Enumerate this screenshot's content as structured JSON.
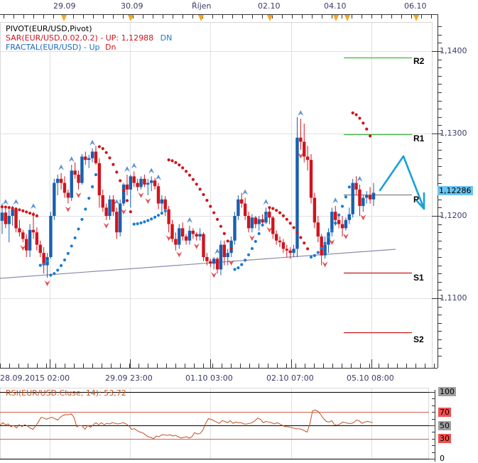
{
  "chart_data": {
    "type": "candlestick",
    "symbol": "EUR/USD",
    "top_axis": {
      "date_labels": [
        "29.09",
        "30.09",
        "Říjen",
        "02.10",
        "04.10",
        "06.10"
      ],
      "marker_color": "#f5a623"
    },
    "bottom_axis": {
      "labels": [
        "28.09.2015 02:00",
        "29.09 23:00",
        "01.10 03:00",
        "02.10 07:00",
        "05.10 08:00"
      ]
    },
    "price_axis": {
      "ticks": [
        "1,1400",
        "1,1300",
        "1,1200",
        "1,1100"
      ],
      "tick_values": [
        1.14,
        1.13,
        1.12,
        1.11
      ],
      "current_price": "1,12286",
      "current_price_value": 1.12286
    },
    "legend": [
      {
        "text": "PIVOT(EUR/USD,Pivot)",
        "color": "#000000"
      },
      {
        "text": "SAR(EUR/USD,0.02,0.2) -  UP: 1,12988",
        "suffix": "DN",
        "color": "#d0141c",
        "suffix_color": "#1a7bd0"
      },
      {
        "text": "FRACTAL(EUR/USD) -  Up",
        "suffix": "Dn",
        "color": "#1a6ab8",
        "suffix_color": "#d0141c"
      }
    ],
    "pivot_levels": [
      {
        "name": "R2",
        "value": 1.1392,
        "color": "#3cb83c"
      },
      {
        "name": "R1",
        "value": 1.1299,
        "color": "#3cb83c"
      },
      {
        "name": "P",
        "value": 1.1226,
        "color": "#808080"
      },
      {
        "name": "S1",
        "value": 1.1131,
        "color": "#c01818"
      },
      {
        "name": "S2",
        "value": 1.1059,
        "color": "#c01818"
      }
    ],
    "trendline": {
      "from": [
        0,
        1.1125
      ],
      "to": [
        557,
        1.116
      ],
      "color": "#8a8ab0"
    },
    "forecast_arrow": {
      "color": "#1aa0d8",
      "points": [
        [
          535,
          1.1233
        ],
        [
          568,
          1.1272
        ],
        [
          597,
          1.1207
        ]
      ]
    },
    "rsi": {
      "title": "RSI(EUR/USD.Cluse, 14): 53,72",
      "period": 14,
      "last_value": 53.72,
      "levels": [
        "100",
        "70",
        "50",
        "30",
        "0"
      ],
      "level_colors": {
        "100": "#a0a0a0",
        "70": "#f05050",
        "50": "#a0a0a0",
        "30": "#f05050",
        "0": "#ffffff"
      },
      "values": [
        50,
        54,
        51,
        52,
        48,
        50,
        46,
        51,
        48,
        51,
        49,
        46,
        44,
        49,
        55,
        62,
        61,
        59,
        61,
        62,
        60,
        58,
        62,
        65,
        66,
        66,
        67,
        62,
        48,
        50,
        49,
        44,
        50,
        47,
        51,
        54,
        51,
        54,
        51,
        53,
        52,
        54,
        53,
        52,
        53,
        54,
        52,
        49,
        44,
        45,
        42,
        40,
        39,
        36,
        33,
        32,
        30,
        34,
        33,
        36,
        36,
        35,
        36,
        34,
        35,
        33,
        31,
        32,
        33,
        31,
        33,
        39,
        37,
        38,
        43,
        53,
        60,
        59,
        57,
        55,
        53,
        57,
        56,
        54,
        57,
        53,
        55,
        54,
        54,
        52,
        52,
        53,
        54,
        57,
        61,
        59,
        54,
        56,
        55,
        54,
        52,
        54,
        52,
        50,
        48,
        48,
        47,
        46,
        45,
        45,
        44,
        42,
        40,
        52,
        72,
        73,
        71,
        66,
        60,
        56,
        55,
        57,
        51,
        50,
        52,
        55,
        54,
        53,
        53,
        54,
        58,
        57,
        53,
        55,
        56,
        55,
        54
      ]
    },
    "candles_note": "approx OHLC read from pixels, oldest to newest",
    "candles": [
      [
        1.1194,
        1.1215,
        1.1178,
        1.1204
      ],
      [
        1.1204,
        1.121,
        1.1185,
        1.119
      ],
      [
        1.119,
        1.1208,
        1.1168,
        1.12
      ],
      [
        1.12,
        1.1212,
        1.1188,
        1.1208
      ],
      [
        1.1208,
        1.121,
        1.118,
        1.1185
      ],
      [
        1.1185,
        1.1195,
        1.1175,
        1.118
      ],
      [
        1.118,
        1.1183,
        1.1168,
        1.1172
      ],
      [
        1.1172,
        1.1178,
        1.115,
        1.1158
      ],
      [
        1.1158,
        1.119,
        1.115,
        1.1183
      ],
      [
        1.1183,
        1.1205,
        1.1172,
        1.118
      ],
      [
        1.118,
        1.1186,
        1.1158,
        1.1165
      ],
      [
        1.1165,
        1.117,
        1.115,
        1.1155
      ],
      [
        1.1155,
        1.1162,
        1.113,
        1.114
      ],
      [
        1.114,
        1.1155,
        1.1125,
        1.115
      ],
      [
        1.115,
        1.1205,
        1.1148,
        1.12
      ],
      [
        1.12,
        1.1245,
        1.1195,
        1.124
      ],
      [
        1.124,
        1.125,
        1.1225,
        1.1245
      ],
      [
        1.1245,
        1.1252,
        1.1232,
        1.124
      ],
      [
        1.124,
        1.1248,
        1.1222,
        1.1228
      ],
      [
        1.1228,
        1.1232,
        1.1215,
        1.1222
      ],
      [
        1.1222,
        1.1262,
        1.1218,
        1.1255
      ],
      [
        1.1255,
        1.1265,
        1.1245,
        1.125
      ],
      [
        1.125,
        1.1255,
        1.1232,
        1.124
      ],
      [
        1.124,
        1.1275,
        1.1238,
        1.1272
      ],
      [
        1.1272,
        1.1278,
        1.1262,
        1.1268
      ],
      [
        1.1268,
        1.1274,
        1.1258,
        1.127
      ],
      [
        1.127,
        1.1282,
        1.1265,
        1.1278
      ],
      [
        1.1278,
        1.1285,
        1.1262,
        1.1264
      ],
      [
        1.1264,
        1.127,
        1.121,
        1.1225
      ],
      [
        1.1225,
        1.1232,
        1.1205,
        1.121
      ],
      [
        1.121,
        1.1215,
        1.1195,
        1.12
      ],
      [
        1.12,
        1.1225,
        1.1195,
        1.122
      ],
      [
        1.122,
        1.1225,
        1.12,
        1.1205
      ],
      [
        1.1205,
        1.121,
        1.1172,
        1.118
      ],
      [
        1.118,
        1.122,
        1.1175,
        1.1215
      ],
      [
        1.1215,
        1.124,
        1.1212,
        1.1238
      ],
      [
        1.1238,
        1.125,
        1.1225,
        1.1232
      ],
      [
        1.1232,
        1.125,
        1.121,
        1.1248
      ],
      [
        1.1248,
        1.1254,
        1.1235,
        1.124
      ],
      [
        1.124,
        1.1245,
        1.123,
        1.1235
      ],
      [
        1.1235,
        1.1248,
        1.1232,
        1.1245
      ],
      [
        1.1245,
        1.125,
        1.1235,
        1.1238
      ],
      [
        1.1238,
        1.1245,
        1.1225,
        1.124
      ],
      [
        1.124,
        1.1248,
        1.123,
        1.1243
      ],
      [
        1.1243,
        1.1246,
        1.1232,
        1.1236
      ],
      [
        1.1236,
        1.124,
        1.1208,
        1.1215
      ],
      [
        1.1215,
        1.1225,
        1.1205,
        1.122
      ],
      [
        1.122,
        1.1224,
        1.12,
        1.1208
      ],
      [
        1.1208,
        1.1212,
        1.118,
        1.119
      ],
      [
        1.119,
        1.1195,
        1.1168,
        1.1172
      ],
      [
        1.1172,
        1.118,
        1.1158,
        1.1165
      ],
      [
        1.1165,
        1.119,
        1.116,
        1.1185
      ],
      [
        1.1185,
        1.1192,
        1.117,
        1.1175
      ],
      [
        1.1175,
        1.1178,
        1.1165,
        1.117
      ],
      [
        1.117,
        1.1188,
        1.1165,
        1.1182
      ],
      [
        1.1182,
        1.1185,
        1.1172,
        1.1178
      ],
      [
        1.1178,
        1.118,
        1.117,
        1.1175
      ],
      [
        1.1175,
        1.1185,
        1.117,
        1.1178
      ],
      [
        1.1178,
        1.118,
        1.1145,
        1.115
      ],
      [
        1.115,
        1.1155,
        1.114,
        1.1145
      ],
      [
        1.1145,
        1.1148,
        1.1138,
        1.1142
      ],
      [
        1.1142,
        1.115,
        1.1135,
        1.1148
      ],
      [
        1.1148,
        1.115,
        1.113,
        1.1135
      ],
      [
        1.1135,
        1.117,
        1.1128,
        1.1165
      ],
      [
        1.1165,
        1.117,
        1.114,
        1.115
      ],
      [
        1.115,
        1.116,
        1.114,
        1.1155
      ],
      [
        1.1155,
        1.1175,
        1.115,
        1.117
      ],
      [
        1.117,
        1.1205,
        1.1165,
        1.12
      ],
      [
        1.12,
        1.1225,
        1.1195,
        1.122
      ],
      [
        1.122,
        1.1228,
        1.121,
        1.1215
      ],
      [
        1.1215,
        1.1222,
        1.1195,
        1.12
      ],
      [
        1.12,
        1.1205,
        1.118,
        1.1185
      ],
      [
        1.1185,
        1.1202,
        1.118,
        1.1198
      ],
      [
        1.1198,
        1.12,
        1.1185,
        1.119
      ],
      [
        1.119,
        1.12,
        1.1182,
        1.1196
      ],
      [
        1.1196,
        1.1202,
        1.1188,
        1.1192
      ],
      [
        1.1192,
        1.121,
        1.119,
        1.1205
      ],
      [
        1.1205,
        1.121,
        1.119,
        1.1198
      ],
      [
        1.1198,
        1.12,
        1.1172,
        1.1178
      ],
      [
        1.1178,
        1.1182,
        1.1165,
        1.117
      ],
      [
        1.117,
        1.1175,
        1.1162,
        1.1168
      ],
      [
        1.1168,
        1.1172,
        1.1155,
        1.116
      ],
      [
        1.116,
        1.1165,
        1.115,
        1.1158
      ],
      [
        1.1158,
        1.1162,
        1.1148,
        1.1155
      ],
      [
        1.1155,
        1.1165,
        1.115,
        1.116
      ],
      [
        1.116,
        1.132,
        1.115,
        1.1295
      ],
      [
        1.1295,
        1.1318,
        1.128,
        1.129
      ],
      [
        1.129,
        1.1312,
        1.1265,
        1.1272
      ],
      [
        1.1272,
        1.1285,
        1.1255,
        1.1268
      ],
      [
        1.1268,
        1.1275,
        1.1215,
        1.1222
      ],
      [
        1.1222,
        1.1228,
        1.1185,
        1.1192
      ],
      [
        1.1192,
        1.12,
        1.1168,
        1.1175
      ],
      [
        1.1175,
        1.1178,
        1.114,
        1.1152
      ],
      [
        1.1152,
        1.1175,
        1.1148,
        1.1165
      ],
      [
        1.1165,
        1.1185,
        1.1155,
        1.118
      ],
      [
        1.118,
        1.121,
        1.1175,
        1.1205
      ],
      [
        1.1205,
        1.1212,
        1.1188,
        1.1195
      ],
      [
        1.1195,
        1.1202,
        1.1185,
        1.119
      ],
      [
        1.119,
        1.12,
        1.1175,
        1.1185
      ],
      [
        1.1185,
        1.1198,
        1.1182,
        1.1195
      ],
      [
        1.1195,
        1.121,
        1.119,
        1.1202
      ],
      [
        1.1202,
        1.1245,
        1.1198,
        1.124
      ],
      [
        1.124,
        1.1248,
        1.1225,
        1.1232
      ],
      [
        1.1232,
        1.1238,
        1.12,
        1.1212
      ],
      [
        1.1212,
        1.1225,
        1.1205,
        1.1222
      ],
      [
        1.1222,
        1.123,
        1.1215,
        1.1225
      ],
      [
        1.1225,
        1.1235,
        1.1215,
        1.122
      ],
      [
        1.122,
        1.124,
        1.1212,
        1.1228
      ]
    ],
    "fractal_up_markers": 18,
    "fractal_down_markers": 20,
    "sar_note": "dotted parabolic SAR: red dots above price (downtrend), blue dots below price (uptrend)"
  }
}
